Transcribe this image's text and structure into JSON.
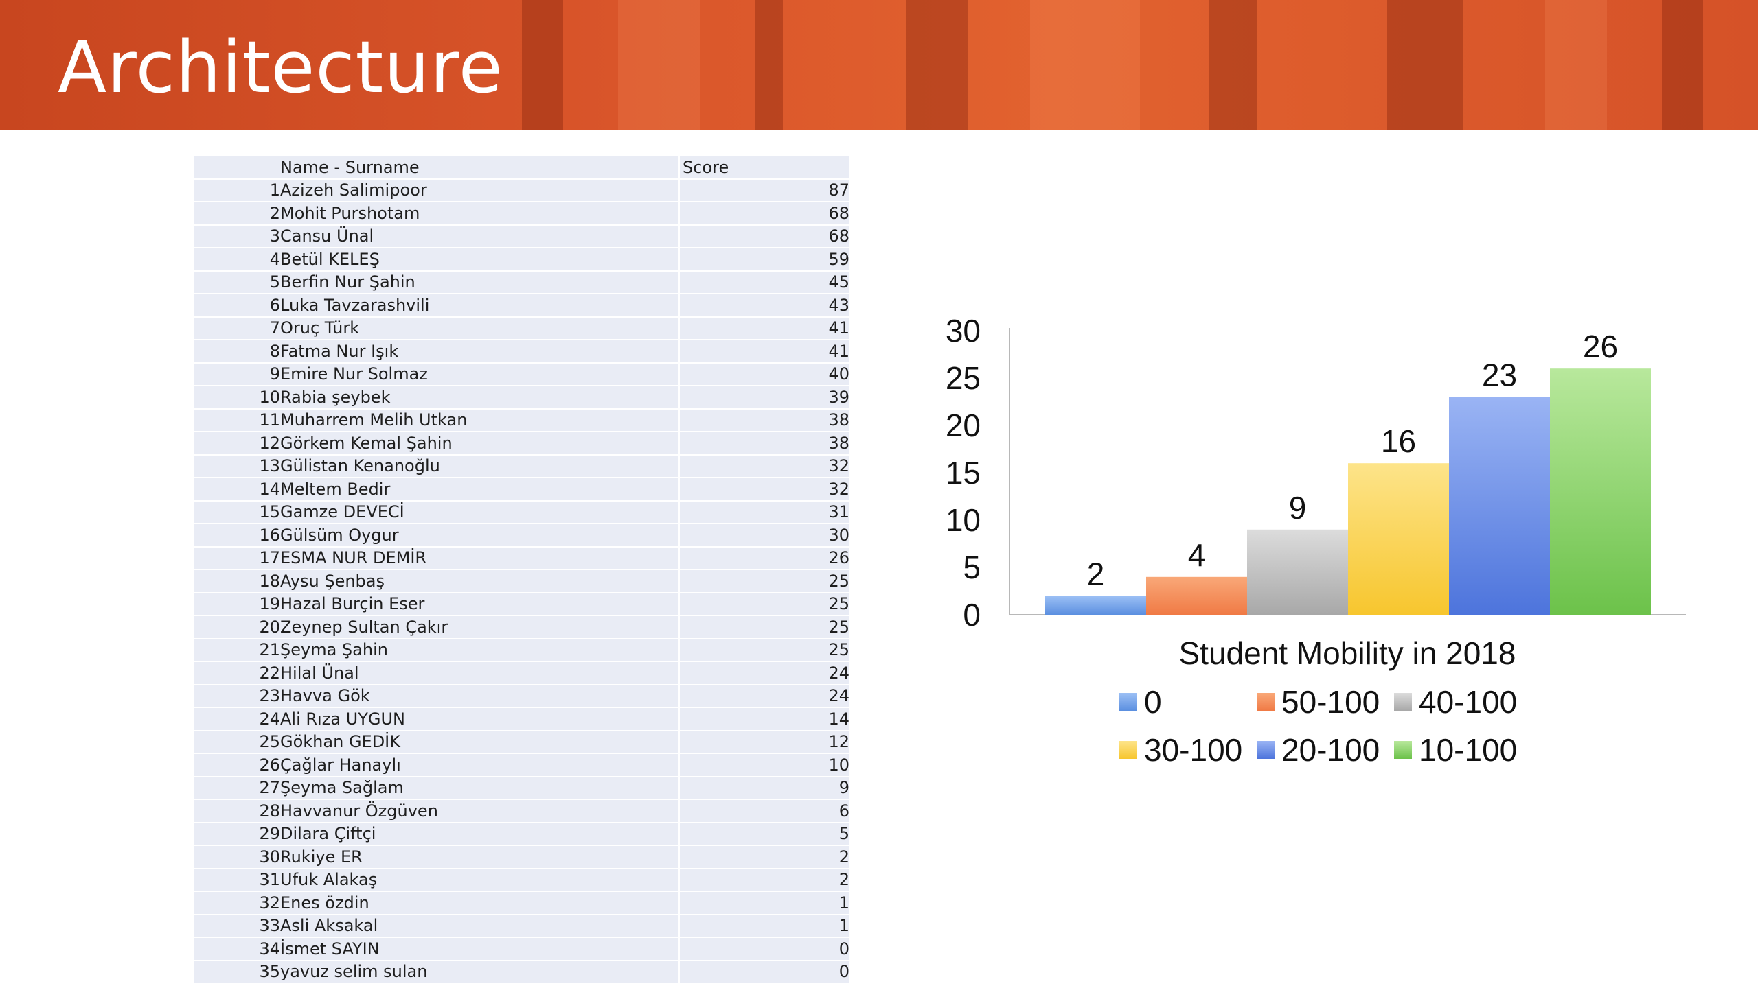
{
  "slide": {
    "title": "Architecture"
  },
  "table": {
    "headers": {
      "number": "",
      "name": "Name - Surname",
      "score": "Score"
    },
    "rows": [
      {
        "no": "1",
        "name": "Azizeh Salimipoor",
        "score": "87"
      },
      {
        "no": "2",
        "name": "Mohit Purshotam",
        "score": "68"
      },
      {
        "no": "3",
        "name": "Cansu Ünal",
        "score": "68"
      },
      {
        "no": "4",
        "name": "Betül KELEŞ",
        "score": "59"
      },
      {
        "no": "5",
        "name": "Berfin Nur Şahin",
        "score": "45"
      },
      {
        "no": "6",
        "name": "Luka Tavzarashvili",
        "score": "43"
      },
      {
        "no": "7",
        "name": "Oruç Türk",
        "score": "41"
      },
      {
        "no": "8",
        "name": "Fatma Nur Işık",
        "score": "41"
      },
      {
        "no": "9",
        "name": "Emire Nur Solmaz",
        "score": "40"
      },
      {
        "no": "10",
        "name": "Rabia şeybek",
        "score": "39"
      },
      {
        "no": "11",
        "name": "Muharrem Melih Utkan",
        "score": "38"
      },
      {
        "no": "12",
        "name": "Görkem Kemal Şahin",
        "score": "38"
      },
      {
        "no": "13",
        "name": "Gülistan Kenanoğlu",
        "score": "32"
      },
      {
        "no": "14",
        "name": "Meltem Bedir",
        "score": "32"
      },
      {
        "no": "15",
        "name": "Gamze DEVECİ",
        "score": "31"
      },
      {
        "no": "16",
        "name": "Gülsüm Oygur",
        "score": "30"
      },
      {
        "no": "17",
        "name": "ESMA NUR DEMİR",
        "score": "26"
      },
      {
        "no": "18",
        "name": "Aysu Şenbaş",
        "score": "25"
      },
      {
        "no": "19",
        "name": "Hazal Burçin Eser",
        "score": "25"
      },
      {
        "no": "20",
        "name": "Zeynep Sultan Çakır",
        "score": "25"
      },
      {
        "no": "21",
        "name": "Şeyma Şahin",
        "score": "25"
      },
      {
        "no": "22",
        "name": "Hilal Ünal",
        "score": "24"
      },
      {
        "no": "23",
        "name": "Havva Gök",
        "score": "24"
      },
      {
        "no": "24",
        "name": "Ali Rıza UYGUN",
        "score": "14"
      },
      {
        "no": "25",
        "name": "Gökhan GEDİK",
        "score": "12"
      },
      {
        "no": "26",
        "name": "Çağlar Hanaylı",
        "score": "10"
      },
      {
        "no": "27",
        "name": "Şeyma Sağlam",
        "score": "9"
      },
      {
        "no": "28",
        "name": "Havvanur Özgüven",
        "score": "6"
      },
      {
        "no": "29",
        "name": "Dilara Çiftçi",
        "score": "5"
      },
      {
        "no": "30",
        "name": "Rukiye ER",
        "score": "2"
      },
      {
        "no": "31",
        "name": "Ufuk Alakaş",
        "score": "2"
      },
      {
        "no": "32",
        "name": "Enes özdin",
        "score": "1"
      },
      {
        "no": "33",
        "name": "Asli Aksakal",
        "score": "1"
      },
      {
        "no": "34",
        "name": "İsmet SAYIN",
        "score": "0"
      },
      {
        "no": "35",
        "name": "yavuz selim sulan",
        "score": "0"
      }
    ]
  },
  "chart_data": {
    "type": "bar",
    "title": "Student Mobility in 2018",
    "xlabel": "",
    "ylabel": "",
    "categories": [
      "0",
      "50-100",
      "40-100",
      "30-100",
      "20-100",
      "10-100"
    ],
    "values": [
      2,
      4,
      9,
      16,
      23,
      26
    ],
    "colors": [
      "#5b8fe0",
      "#f07a45",
      "#a8a8a8",
      "#f7c62e",
      "#4d74dc",
      "#6cc24a"
    ],
    "highlight_colors": [
      "#9cc0f5",
      "#f9a878",
      "#dcdcdc",
      "#fde48a",
      "#9ab4f4",
      "#b8e89c"
    ],
    "ylim": [
      0,
      30
    ],
    "yticks": [
      "0",
      "5",
      "10",
      "15",
      "20",
      "25",
      "30"
    ],
    "data_labels": [
      "2",
      "4",
      "9",
      "16",
      "23",
      "26"
    ],
    "legend": {
      "position": "bottom",
      "items": [
        "0",
        "50-100",
        "40-100",
        "30-100",
        "20-100",
        "10-100"
      ]
    },
    "grid": false
  }
}
